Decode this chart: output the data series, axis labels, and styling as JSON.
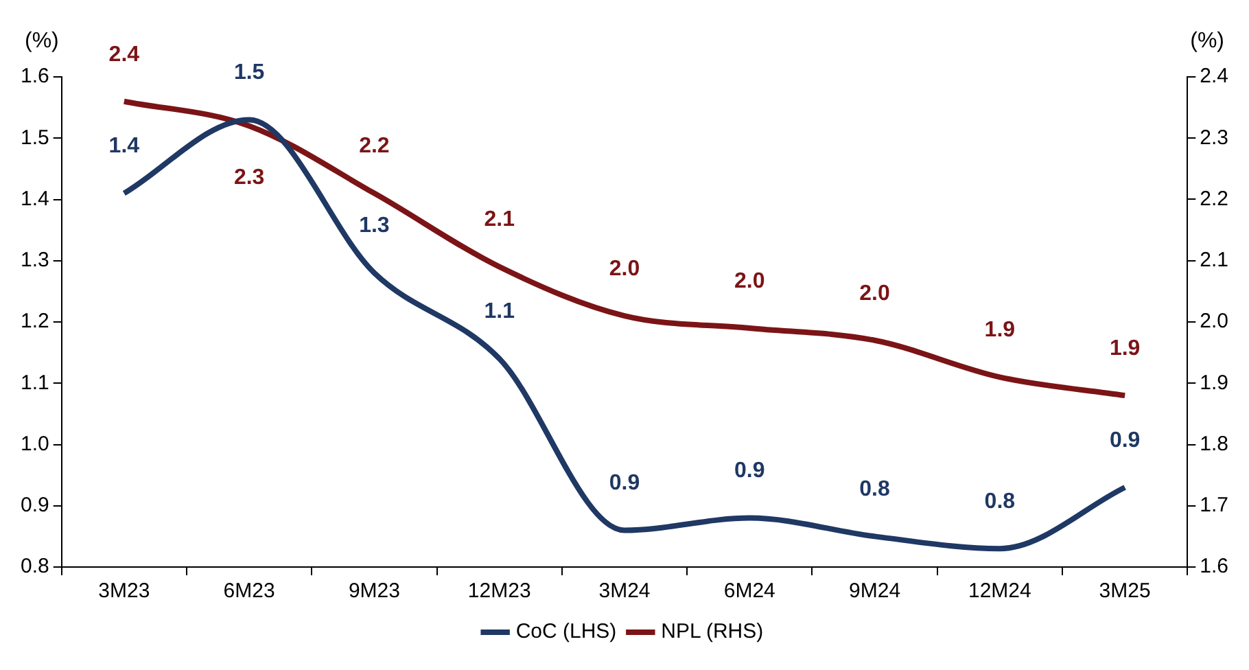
{
  "chart_data": {
    "type": "line",
    "ylabel": "(%)",
    "y2label": "(%)",
    "categories": [
      "3M23",
      "6M23",
      "9M23",
      "12M23",
      "3M24",
      "6M24",
      "9M24",
      "12M24",
      "3M25"
    ],
    "series": [
      {
        "name": "CoC (LHS)",
        "color": "#1f3864",
        "values": [
          1.41,
          1.53,
          1.28,
          1.14,
          0.86,
          0.88,
          0.85,
          0.83,
          0.93
        ],
        "value_labels": [
          "1.4",
          "1.5",
          "1.3",
          "1.1",
          "0.9",
          "0.9",
          "0.8",
          "0.8",
          "0.9"
        ]
      },
      {
        "name": "NPL (RHS)",
        "color": "#7b1416",
        "axis": "y2",
        "values": [
          2.36,
          2.32,
          2.21,
          2.09,
          2.01,
          1.99,
          1.97,
          1.91,
          1.88
        ],
        "value_labels": [
          "2.4",
          "2.3",
          "2.2",
          "2.1",
          "2.0",
          "2.0",
          "2.0",
          "1.9",
          "1.9"
        ]
      }
    ],
    "ylim": [
      0.8,
      1.6
    ],
    "yticks": [
      {
        "value": 0.8,
        "label": "0.8"
      },
      {
        "value": 0.9,
        "label": "0.9"
      },
      {
        "value": 1.0,
        "label": "1.0"
      },
      {
        "value": 1.1,
        "label": "1.1"
      },
      {
        "value": 1.2,
        "label": "1.2"
      },
      {
        "value": 1.3,
        "label": "1.3"
      },
      {
        "value": 1.4,
        "label": "1.4"
      },
      {
        "value": 1.5,
        "label": "1.5"
      },
      {
        "value": 1.6,
        "label": "1.6"
      }
    ],
    "y2lim": [
      1.6,
      2.4
    ],
    "y2ticks": [
      {
        "value": 1.6,
        "label": "1.6"
      },
      {
        "value": 1.7,
        "label": "1.7"
      },
      {
        "value": 1.8,
        "label": "1.8"
      },
      {
        "value": 1.9,
        "label": "1.9"
      },
      {
        "value": 2.0,
        "label": "2.0"
      },
      {
        "value": 2.1,
        "label": "2.1"
      },
      {
        "value": 2.2,
        "label": "2.2"
      },
      {
        "value": 2.3,
        "label": "2.3"
      },
      {
        "value": 2.4,
        "label": "2.4"
      }
    ],
    "grid": false,
    "legend": "bottom",
    "marker": "none",
    "line_style": "solid"
  }
}
